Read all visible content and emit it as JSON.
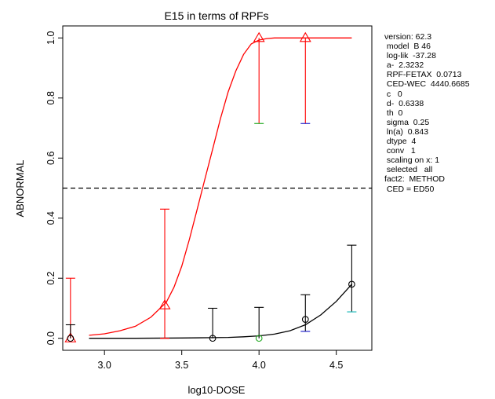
{
  "chart_data": {
    "type": "scatter",
    "title": "E15 in terms of RPFs",
    "xlabel": "log10-DOSE",
    "ylabel": "ABNORMAL",
    "xlim": [
      2.73,
      4.73
    ],
    "ylim": [
      -0.04,
      1.04
    ],
    "xticks": [
      3.0,
      3.5,
      4.0,
      4.5
    ],
    "xtick_labels": [
      "3.0",
      "3.5",
      "4.0",
      "4.5"
    ],
    "yticks": [
      0.0,
      0.2,
      0.4,
      0.6,
      0.8,
      1.0
    ],
    "ytick_labels": [
      "0.0",
      "0.2",
      "0.4",
      "0.6",
      "0.8",
      "1.0"
    ],
    "reference_line": {
      "y": 0.5,
      "style": "dashed",
      "color": "#000000"
    },
    "series": [
      {
        "marker": "triangle",
        "color": "#ff0000",
        "points": [
          {
            "x": 2.78,
            "y": 0.0,
            "lo": 0.0,
            "hi": 0.2
          },
          {
            "x": 3.39,
            "y": 0.11,
            "lo": 0.0,
            "hi": 0.43
          },
          {
            "x": 4.0,
            "y": 1.0,
            "lo": 0.715,
            "hi": 1.0
          },
          {
            "x": 4.3,
            "y": 1.0,
            "lo": 0.715,
            "hi": 1.0
          }
        ],
        "curve": {
          "x": [
            2.9,
            3.0,
            3.1,
            3.2,
            3.3,
            3.4,
            3.45,
            3.5,
            3.55,
            3.6,
            3.65,
            3.7,
            3.75,
            3.8,
            3.85,
            3.9,
            3.95,
            4.0,
            4.05,
            4.1,
            4.2,
            4.3,
            4.4,
            4.5,
            4.6
          ],
          "y": [
            0.01,
            0.015,
            0.025,
            0.04,
            0.07,
            0.12,
            0.17,
            0.24,
            0.33,
            0.43,
            0.53,
            0.63,
            0.73,
            0.82,
            0.89,
            0.945,
            0.98,
            0.993,
            0.998,
            1.0,
            1.0,
            1.0,
            1.0,
            1.0,
            1.0
          ]
        }
      },
      {
        "marker": "circle",
        "color": "#000000",
        "points": [
          {
            "x": 2.78,
            "y": 0.0,
            "lo": 0.0,
            "hi": 0.045
          },
          {
            "x": 3.7,
            "y": 0.0,
            "lo": 0.0,
            "hi": 0.1
          },
          {
            "x": 4.0,
            "y": 0.0,
            "lo": 0.0,
            "hi": 0.103
          },
          {
            "x": 4.3,
            "y": 0.063,
            "lo": 0.023,
            "hi": 0.145
          },
          {
            "x": 4.6,
            "y": 0.18,
            "lo": 0.088,
            "hi": 0.31
          }
        ],
        "curve": {
          "x": [
            2.9,
            3.2,
            3.5,
            3.7,
            3.8,
            3.9,
            4.0,
            4.1,
            4.2,
            4.3,
            4.4,
            4.5,
            4.6
          ],
          "y": [
            0.0,
            0.0,
            0.001,
            0.002,
            0.003,
            0.005,
            0.008,
            0.014,
            0.025,
            0.045,
            0.078,
            0.123,
            0.18
          ]
        }
      }
    ],
    "cap_colors": [
      {
        "x": 4.0,
        "color": "#22aa22"
      },
      {
        "x": 4.3,
        "color": "#2222cc"
      },
      {
        "x": 4.6,
        "color": "#22bbbb"
      }
    ]
  },
  "legend": {
    "lines": [
      "version: 62.3",
      " model  B 46",
      " log-lik  -37.28",
      " a-  2.3232",
      " RPF-FETAX  0.0713",
      " CED-WEC  4440.6685",
      " c   0",
      " d-  0.6338",
      " th  0",
      " sigma  0.25",
      " ln(a)  0.843",
      " dtype  4",
      " conv   1",
      " scaling on x: 1",
      " selected   all",
      "fact2:  METHOD",
      " CED = ED50"
    ]
  }
}
